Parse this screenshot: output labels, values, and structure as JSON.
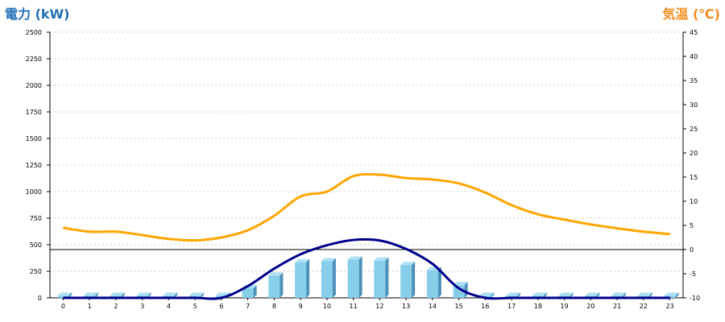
{
  "chart_data": {
    "type": "bar+line",
    "left_axis_title": "電力 (kW)",
    "right_axis_title": "気温 (℃)",
    "categories": [
      "0",
      "1",
      "2",
      "3",
      "4",
      "5",
      "6",
      "7",
      "8",
      "9",
      "10",
      "11",
      "12",
      "13",
      "14",
      "15",
      "16",
      "17",
      "18",
      "19",
      "20",
      "21",
      "22",
      "23"
    ],
    "left_ylim": [
      0,
      2500
    ],
    "left_ticks": [
      "0",
      "250",
      "500",
      "750",
      "1000",
      "1250",
      "1500",
      "1750",
      "2000",
      "2250",
      "2500"
    ],
    "right_ylim": [
      -10,
      45
    ],
    "right_ticks": [
      "-10",
      "-5",
      "0",
      "5",
      "10",
      "15",
      "20",
      "25",
      "30",
      "35",
      "40",
      "45"
    ],
    "grid": true,
    "series": [
      {
        "kind": "bar",
        "color": "#87ceeb",
        "values": [
          20,
          20,
          20,
          20,
          20,
          20,
          20,
          90,
          210,
          335,
          345,
          360,
          350,
          310,
          260,
          120,
          20,
          20,
          20,
          20,
          20,
          20,
          20,
          20
        ]
      },
      {
        "kind": "line",
        "color": "#00008b",
        "values": [
          0,
          0,
          0,
          0,
          0,
          0,
          0,
          110,
          275,
          410,
          495,
          545,
          540,
          460,
          320,
          90,
          0,
          0,
          0,
          0,
          0,
          0,
          0,
          0
        ]
      },
      {
        "kind": "line",
        "color": "#ffa500",
        "values": [
          4.5,
          3.7,
          3.7,
          3.0,
          2.2,
          1.9,
          2.5,
          4.0,
          7.0,
          11.0,
          12.0,
          15.2,
          15.5,
          14.8,
          14.5,
          13.7,
          11.8,
          9.2,
          7.3,
          6.2,
          5.2,
          4.4,
          3.7,
          3.2
        ]
      }
    ],
    "reference_line": {
      "axis": "right",
      "value": 0
    }
  }
}
